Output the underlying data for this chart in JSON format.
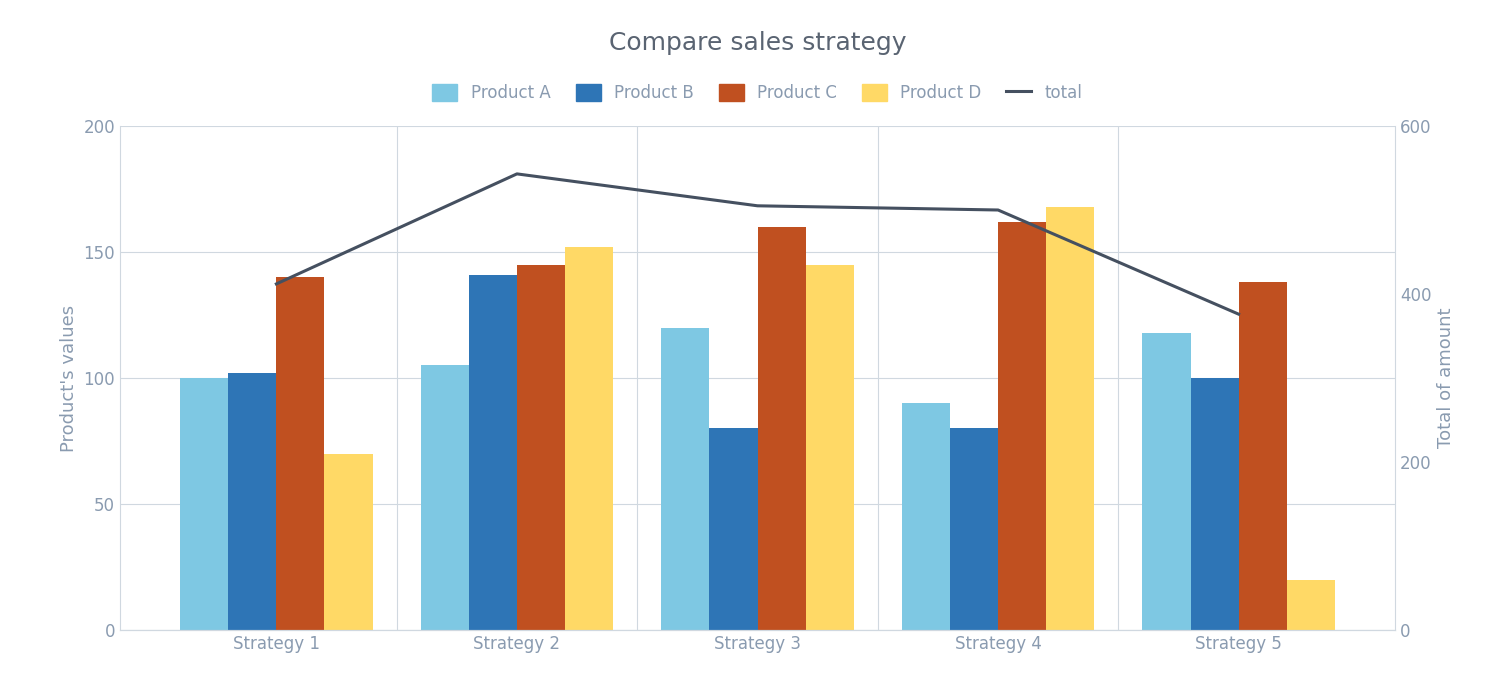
{
  "title": "Compare sales strategy",
  "categories": [
    "Strategy 1",
    "Strategy 2",
    "Strategy 3",
    "Strategy 4",
    "Strategy 5"
  ],
  "product_A": [
    100,
    105,
    120,
    90,
    118
  ],
  "product_B": [
    102,
    141,
    80,
    80,
    100
  ],
  "product_C": [
    140,
    145,
    160,
    162,
    138
  ],
  "product_D": [
    70,
    152,
    145,
    168,
    20
  ],
  "total": [
    412,
    543,
    505,
    500,
    376
  ],
  "bar_colors": {
    "Product A": "#7EC8E3",
    "Product B": "#2E75B6",
    "Product C": "#C05020",
    "Product D": "#FFD966"
  },
  "line_color": "#455060",
  "ylabel_left": "Product's values",
  "ylabel_right": "Total of amount",
  "ylim_left": [
    0,
    200
  ],
  "ylim_right": [
    0,
    600
  ],
  "legend_labels": [
    "Product A",
    "Product B",
    "Product C",
    "Product D",
    "total"
  ],
  "background_color": "#FFFFFF",
  "grid_color": "#D0D8E0",
  "title_fontsize": 18,
  "label_fontsize": 13,
  "tick_fontsize": 12,
  "legend_fontsize": 12,
  "title_color": "#5A6472",
  "axis_color": "#8A9BB0"
}
